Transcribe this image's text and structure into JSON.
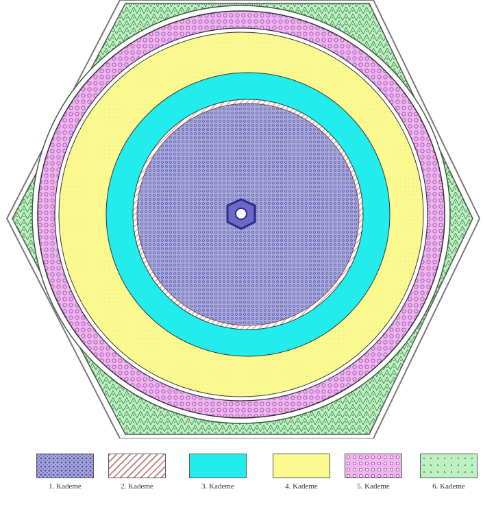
{
  "legend": {
    "items": [
      {
        "label": "1. Kademe",
        "color": "#a9a9d8",
        "pattern": "kademe1"
      },
      {
        "label": "2. Kademe",
        "color": "#ffffff",
        "pattern": "kademe2"
      },
      {
        "label": "3. Kademe",
        "color": "#22ecec",
        "pattern": "kademe3"
      },
      {
        "label": "4. Kademe",
        "color": "#fbf98f",
        "pattern": "kademe4"
      },
      {
        "label": "5. Kademe",
        "color": "#ecb6ee",
        "pattern": "kademe5"
      },
      {
        "label": "6. Kademe",
        "color": "#bdf0c2",
        "pattern": "kademe6"
      }
    ]
  },
  "colors": {
    "hexagon_outline": "#555555",
    "core_dark": "#3a37a0",
    "ring_stripe": "#c48b8b"
  }
}
